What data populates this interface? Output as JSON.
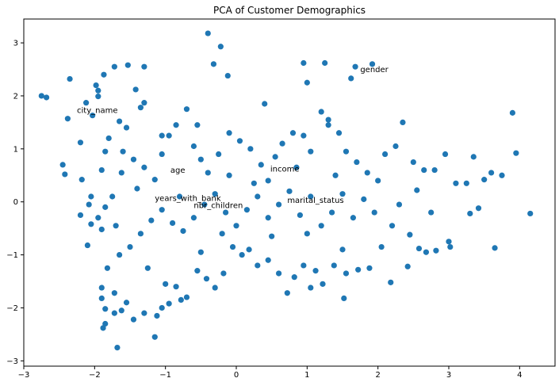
{
  "chart_data": {
    "type": "scatter",
    "title": "PCA of Customer Demographics",
    "xlabel": "",
    "ylabel": "",
    "xlim": [
      -3.0,
      4.5
    ],
    "ylim": [
      -3.1,
      3.45
    ],
    "x_ticks": [
      -3,
      -2,
      -1,
      0,
      1,
      2,
      3,
      4
    ],
    "y_ticks": [
      -3,
      -2,
      -1,
      0,
      1,
      2,
      3
    ],
    "grid": false,
    "legend": "none",
    "marker_color": "#1f77b4",
    "annotations": [
      {
        "text": "gender",
        "x": 1.75,
        "y": 2.45
      },
      {
        "text": "city_name",
        "x": -2.25,
        "y": 1.68
      },
      {
        "text": "age",
        "x": -0.93,
        "y": 0.55
      },
      {
        "text": "income",
        "x": 0.48,
        "y": 0.57
      },
      {
        "text": "years_with_bank",
        "x": -1.15,
        "y": 0.02
      },
      {
        "text": "nbr_children",
        "x": -0.6,
        "y": -0.12
      },
      {
        "text": "marital_status",
        "x": 0.72,
        "y": -0.02
      }
    ],
    "points": [
      [
        -2.75,
        2.0
      ],
      [
        -2.68,
        1.97
      ],
      [
        -2.35,
        2.32
      ],
      [
        -2.38,
        1.57
      ],
      [
        -1.98,
        2.2
      ],
      [
        -1.87,
        2.4
      ],
      [
        -2.03,
        1.63
      ],
      [
        -1.95,
        1.99
      ],
      [
        -1.72,
        2.55
      ],
      [
        -1.53,
        2.58
      ],
      [
        -1.3,
        2.55
      ],
      [
        -1.42,
        2.12
      ],
      [
        -1.3,
        1.87
      ],
      [
        -1.35,
        1.78
      ],
      [
        -1.55,
        1.4
      ],
      [
        -1.65,
        1.52
      ],
      [
        -1.8,
        1.2
      ],
      [
        -1.9,
        0.6
      ],
      [
        -2.18,
        0.42
      ],
      [
        -2.45,
        0.7
      ],
      [
        -2.42,
        0.52
      ],
      [
        -2.2,
        1.12
      ],
      [
        -2.05,
        0.1
      ],
      [
        -2.08,
        -0.05
      ],
      [
        -2.2,
        -0.25
      ],
      [
        -2.05,
        -0.42
      ],
      [
        -1.95,
        -0.3
      ],
      [
        -2.1,
        -0.82
      ],
      [
        -1.9,
        -0.52
      ],
      [
        -1.85,
        -0.1
      ],
      [
        -1.75,
        0.1
      ],
      [
        -1.62,
        0.55
      ],
      [
        -1.6,
        0.95
      ],
      [
        -1.45,
        0.8
      ],
      [
        -1.3,
        0.65
      ],
      [
        -1.15,
        0.42
      ],
      [
        -1.05,
        0.9
      ],
      [
        -0.95,
        1.25
      ],
      [
        -0.85,
        1.45
      ],
      [
        -0.7,
        1.75
      ],
      [
        -0.6,
        1.05
      ],
      [
        -0.5,
        0.8
      ],
      [
        -0.4,
        0.55
      ],
      [
        -0.25,
        0.9
      ],
      [
        -0.1,
        1.3
      ],
      [
        0.05,
        1.15
      ],
      [
        0.2,
        1.0
      ],
      [
        0.35,
        0.7
      ],
      [
        0.45,
        0.4
      ],
      [
        0.55,
        0.85
      ],
      [
        0.65,
        1.1
      ],
      [
        0.8,
        1.3
      ],
      [
        0.95,
        1.25
      ],
      [
        1.05,
        0.95
      ],
      [
        1.2,
        1.7
      ],
      [
        1.3,
        1.45
      ],
      [
        1.45,
        1.3
      ],
      [
        1.55,
        0.95
      ],
      [
        1.7,
        0.75
      ],
      [
        1.85,
        0.55
      ],
      [
        2.0,
        0.4
      ],
      [
        2.1,
        0.9
      ],
      [
        2.25,
        1.05
      ],
      [
        2.35,
        1.5
      ],
      [
        2.5,
        0.75
      ],
      [
        2.65,
        0.6
      ],
      [
        2.8,
        0.6
      ],
      [
        2.95,
        0.9
      ],
      [
        3.1,
        0.35
      ],
      [
        3.25,
        0.35
      ],
      [
        3.35,
        0.85
      ],
      [
        3.6,
        0.55
      ],
      [
        3.75,
        0.5
      ],
      [
        3.5,
        0.42
      ],
      [
        3.95,
        0.92
      ],
      [
        3.9,
        1.68
      ],
      [
        4.15,
        -0.22
      ],
      [
        3.65,
        -0.87
      ],
      [
        3.42,
        -0.12
      ],
      [
        3.3,
        -0.22
      ],
      [
        3.0,
        -0.75
      ],
      [
        3.02,
        -0.85
      ],
      [
        2.82,
        -0.92
      ],
      [
        2.68,
        -0.95
      ],
      [
        2.58,
        -0.88
      ],
      [
        2.42,
        -1.22
      ],
      [
        2.45,
        -0.62
      ],
      [
        2.2,
        -0.45
      ],
      [
        2.05,
        -0.85
      ],
      [
        2.18,
        -1.52
      ],
      [
        1.88,
        -1.25
      ],
      [
        1.72,
        -1.28
      ],
      [
        1.55,
        -1.35
      ],
      [
        1.52,
        -1.82
      ],
      [
        1.38,
        -1.2
      ],
      [
        1.22,
        -1.55
      ],
      [
        1.12,
        -1.3
      ],
      [
        1.05,
        -1.62
      ],
      [
        0.95,
        -1.2
      ],
      [
        0.82,
        -1.42
      ],
      [
        0.72,
        -1.72
      ],
      [
        0.6,
        -1.35
      ],
      [
        0.45,
        -1.1
      ],
      [
        0.3,
        -1.2
      ],
      [
        0.18,
        -0.9
      ],
      [
        0.08,
        -1.0
      ],
      [
        -0.05,
        -0.85
      ],
      [
        -0.18,
        -1.35
      ],
      [
        -0.3,
        -1.62
      ],
      [
        -0.42,
        -1.45
      ],
      [
        -0.55,
        -1.3
      ],
      [
        -0.7,
        -1.8
      ],
      [
        -0.78,
        -1.85
      ],
      [
        -0.85,
        -1.6
      ],
      [
        -0.95,
        -1.92
      ],
      [
        -1.05,
        -2.0
      ],
      [
        -1.12,
        -2.15
      ],
      [
        -1.15,
        -2.55
      ],
      [
        -1.3,
        -2.1
      ],
      [
        -1.45,
        -2.22
      ],
      [
        -1.55,
        -1.9
      ],
      [
        -1.62,
        -2.05
      ],
      [
        -1.72,
        -2.1
      ],
      [
        -1.85,
        -2.02
      ],
      [
        -1.85,
        -2.3
      ],
      [
        -1.88,
        -2.38
      ],
      [
        -1.68,
        -2.75
      ],
      [
        -1.9,
        -1.62
      ],
      [
        -1.9,
        -1.82
      ],
      [
        -1.72,
        -1.72
      ],
      [
        -1.82,
        -1.25
      ],
      [
        -1.65,
        -1.0
      ],
      [
        -1.5,
        -0.85
      ],
      [
        -1.35,
        -0.6
      ],
      [
        -1.2,
        -0.35
      ],
      [
        -1.05,
        -0.15
      ],
      [
        -0.9,
        -0.4
      ],
      [
        -0.75,
        -0.55
      ],
      [
        -0.6,
        -0.3
      ],
      [
        -0.45,
        -0.05
      ],
      [
        -0.3,
        0.15
      ],
      [
        -0.15,
        -0.2
      ],
      [
        0.0,
        -0.45
      ],
      [
        0.15,
        -0.15
      ],
      [
        0.3,
        0.1
      ],
      [
        0.45,
        -0.3
      ],
      [
        0.6,
        -0.05
      ],
      [
        0.75,
        0.2
      ],
      [
        0.9,
        -0.25
      ],
      [
        1.05,
        0.1
      ],
      [
        1.2,
        -0.45
      ],
      [
        1.35,
        -0.2
      ],
      [
        1.5,
        0.15
      ],
      [
        1.65,
        -0.3
      ],
      [
        1.8,
        0.05
      ],
      [
        1.95,
        -0.2
      ],
      [
        -0.4,
        3.18
      ],
      [
        -0.22,
        2.93
      ],
      [
        -0.32,
        2.6
      ],
      [
        -0.12,
        2.38
      ],
      [
        0.95,
        2.62
      ],
      [
        1.25,
        2.62
      ],
      [
        1.62,
        2.33
      ],
      [
        1.68,
        2.55
      ],
      [
        1.92,
        2.6
      ],
      [
        1.0,
        2.25
      ],
      [
        1.3,
        1.55
      ],
      [
        2.3,
        -0.05
      ],
      [
        2.55,
        0.22
      ],
      [
        2.75,
        -0.2
      ],
      [
        1.5,
        -0.9
      ],
      [
        1.0,
        -0.6
      ],
      [
        0.5,
        -0.65
      ],
      [
        -0.2,
        -0.6
      ],
      [
        -0.8,
        0.1
      ],
      [
        -1.4,
        0.25
      ],
      [
        -1.7,
        -0.45
      ],
      [
        -1.25,
        -1.25
      ],
      [
        -1.0,
        -1.55
      ],
      [
        -0.5,
        -0.95
      ],
      [
        -0.1,
        0.5
      ],
      [
        0.25,
        0.35
      ],
      [
        0.85,
        0.65
      ],
      [
        1.4,
        0.5
      ],
      [
        -1.05,
        1.25
      ],
      [
        -0.55,
        1.45
      ],
      [
        0.4,
        1.85
      ],
      [
        -1.85,
        0.95
      ],
      [
        -2.12,
        1.87
      ],
      [
        -1.95,
        2.1
      ]
    ]
  }
}
